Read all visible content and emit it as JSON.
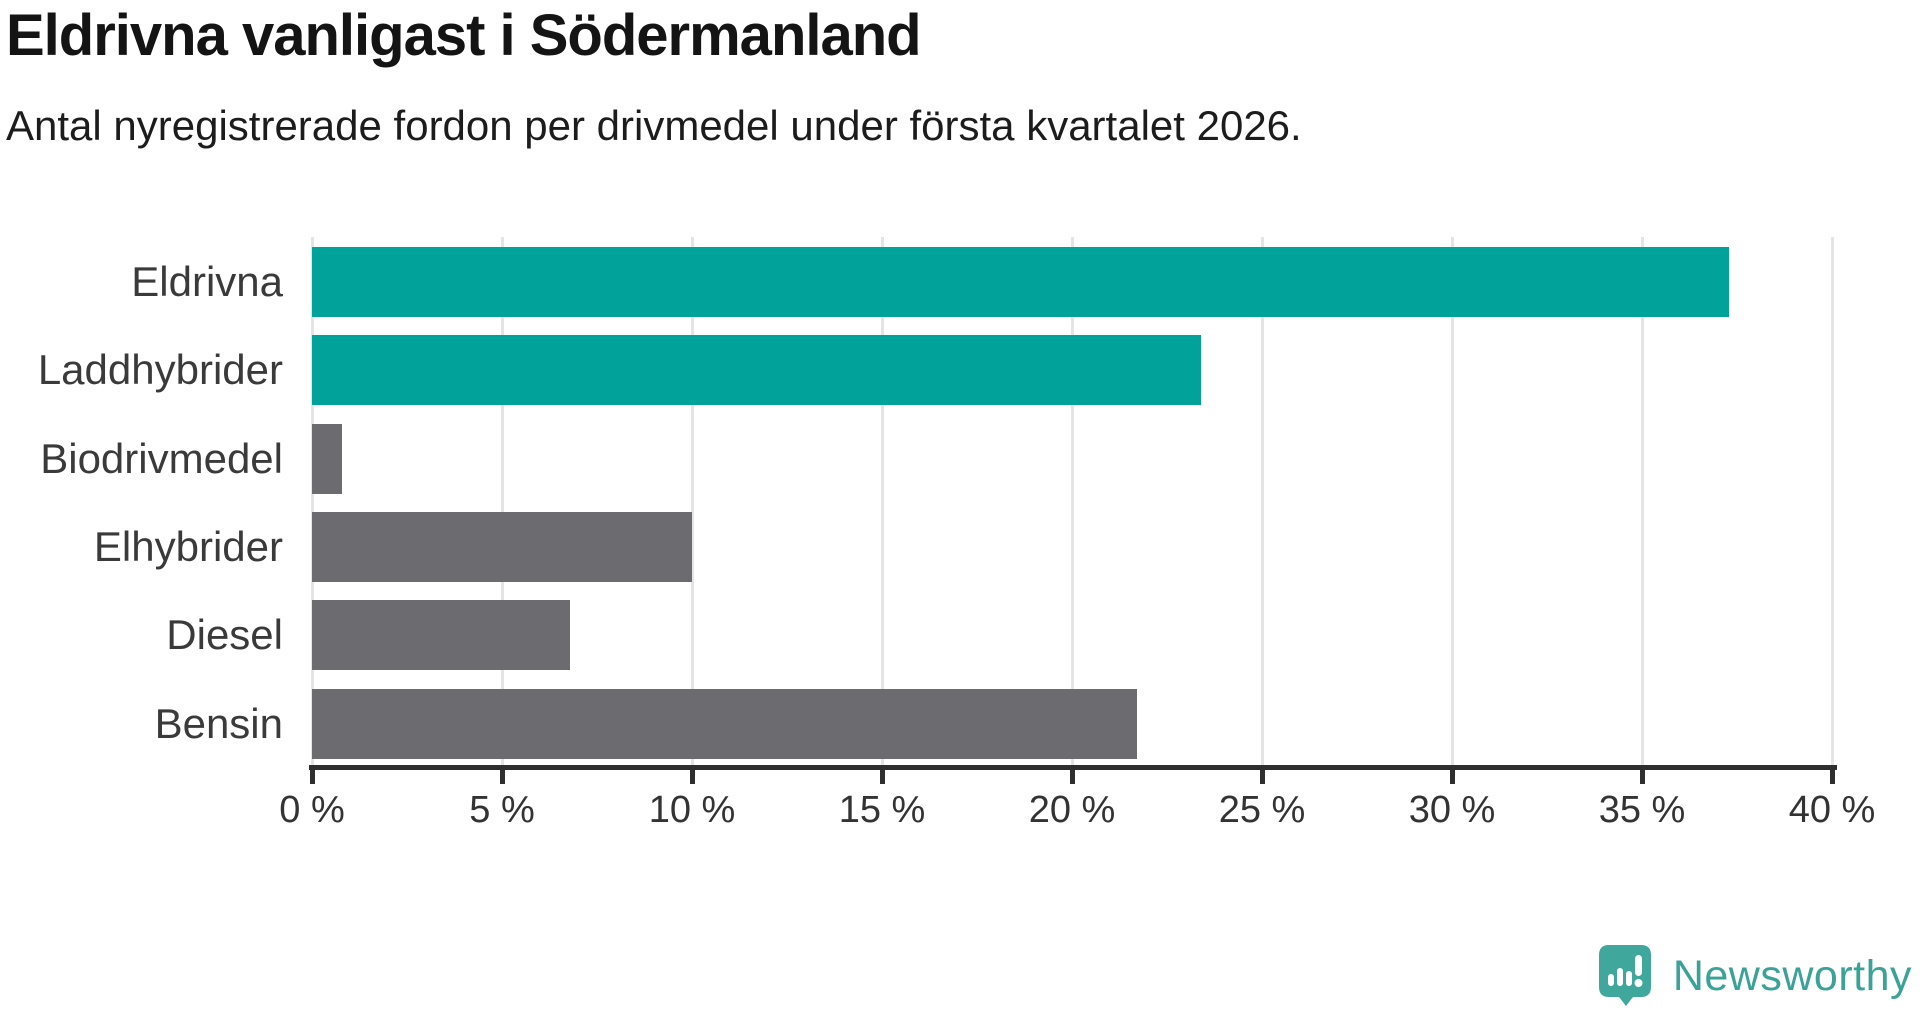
{
  "header": {
    "title": "Eldrivna vanligast i Södermanland",
    "subtitle": "Antal nyregistrerade fordon per drivmedel under första kvartalet 2026."
  },
  "chart_data": {
    "type": "bar",
    "orientation": "horizontal",
    "title": "Eldrivna vanligast i Södermanland",
    "subtitle": "Antal nyregistrerade fordon per drivmedel under första kvartalet 2026.",
    "categories": [
      "Eldrivna",
      "Laddhybrider",
      "Biodrivmedel",
      "Elhybrider",
      "Diesel",
      "Bensin"
    ],
    "values": [
      37.3,
      23.4,
      0.8,
      10.0,
      6.8,
      21.7
    ],
    "unit": "%",
    "bar_colors": [
      "#00a29a",
      "#00a29a",
      "#6c6c70",
      "#6c6c70",
      "#6c6c70",
      "#6c6c70"
    ],
    "highlight_color": "#00a29a",
    "default_color": "#6c6c70",
    "xlabel": "",
    "ylabel": "",
    "xlim": [
      0,
      40
    ],
    "x_ticks": [
      0,
      5,
      10,
      15,
      20,
      25,
      30,
      35,
      40
    ],
    "x_tick_labels": [
      "0 %",
      "5 %",
      "10 %",
      "15 %",
      "20 %",
      "25 %",
      "30 %",
      "35 %",
      "40 %"
    ],
    "grid": "vertical-on",
    "grid_color": "#e4e4e4",
    "axis_color": "#2f2f2f",
    "legend": "none"
  },
  "footer": {
    "brand": "Newsworthy",
    "brand_color": "#3aa296",
    "icon": "newsworthy-speech-bubble-chart-icon",
    "icon_color": "#3fa79b"
  }
}
